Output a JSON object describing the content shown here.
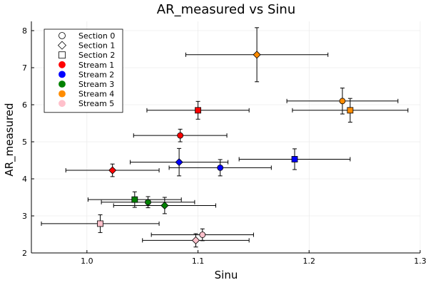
{
  "chart_data": {
    "type": "scatter",
    "title": "AR_measured vs Sinu",
    "xlabel": "Sinu",
    "ylabel": "AR_measured",
    "xlim": [
      0.95,
      1.3
    ],
    "ylim": [
      2.0,
      8.25
    ],
    "xticks": [
      1.0,
      1.1,
      1.2,
      1.3
    ],
    "xtick_labels": [
      "1.0",
      "1.1",
      "1.2",
      "1.3"
    ],
    "yticks": [
      2,
      3,
      4,
      5,
      6,
      7,
      8
    ],
    "ytick_labels": [
      "2",
      "3",
      "4",
      "5",
      "6",
      "7",
      "8"
    ],
    "grid": true,
    "legend_position": "top-left",
    "legend": {
      "markers": [
        {
          "label": "Section 0",
          "shape": "circle"
        },
        {
          "label": "Section 1",
          "shape": "diamond"
        },
        {
          "label": "Section 2",
          "shape": "square"
        }
      ],
      "colors": [
        {
          "label": "Stream 1",
          "color": "#ff0000"
        },
        {
          "label": "Stream 2",
          "color": "#0000ff"
        },
        {
          "label": "Stream 3",
          "color": "#008000"
        },
        {
          "label": "Stream 4",
          "color": "#ff8c00"
        },
        {
          "label": "Stream 5",
          "color": "#ffc0cb"
        }
      ]
    },
    "points": [
      {
        "stream": 1,
        "section": 0,
        "x": 1.084,
        "y": 5.17,
        "xerr": 0.042,
        "yerr": 0.17
      },
      {
        "stream": 1,
        "section": 1,
        "x": 1.023,
        "y": 4.23,
        "xerr": 0.042,
        "yerr": 0.17
      },
      {
        "stream": 1,
        "section": 2,
        "x": 1.1,
        "y": 5.85,
        "xerr": 0.046,
        "yerr": 0.24
      },
      {
        "stream": 2,
        "section": 0,
        "x": 1.12,
        "y": 4.3,
        "xerr": 0.046,
        "yerr": 0.22
      },
      {
        "stream": 2,
        "section": 1,
        "x": 1.083,
        "y": 4.45,
        "xerr": 0.044,
        "yerr": 0.37
      },
      {
        "stream": 2,
        "section": 2,
        "x": 1.187,
        "y": 4.53,
        "xerr": 0.05,
        "yerr": 0.28
      },
      {
        "stream": 3,
        "section": 0,
        "x": 1.055,
        "y": 3.37,
        "xerr": 0.042,
        "yerr": 0.15
      },
      {
        "stream": 3,
        "section": 1,
        "x": 1.07,
        "y": 3.28,
        "xerr": 0.046,
        "yerr": 0.22
      },
      {
        "stream": 3,
        "section": 2,
        "x": 1.043,
        "y": 3.44,
        "xerr": 0.042,
        "yerr": 0.21
      },
      {
        "stream": 4,
        "section": 0,
        "x": 1.23,
        "y": 6.1,
        "xerr": 0.05,
        "yerr": 0.35
      },
      {
        "stream": 4,
        "section": 1,
        "x": 1.153,
        "y": 7.35,
        "xerr": 0.064,
        "yerr": 0.73
      },
      {
        "stream": 4,
        "section": 2,
        "x": 1.237,
        "y": 5.85,
        "xerr": 0.052,
        "yerr": 0.32
      },
      {
        "stream": 5,
        "section": 0,
        "x": 1.104,
        "y": 2.49,
        "xerr": 0.046,
        "yerr": 0.16
      },
      {
        "stream": 5,
        "section": 1,
        "x": 1.098,
        "y": 2.34,
        "xerr": 0.048,
        "yerr": 0.18
      },
      {
        "stream": 5,
        "section": 2,
        "x": 1.012,
        "y": 2.79,
        "xerr": 0.053,
        "yerr": 0.24
      }
    ]
  }
}
